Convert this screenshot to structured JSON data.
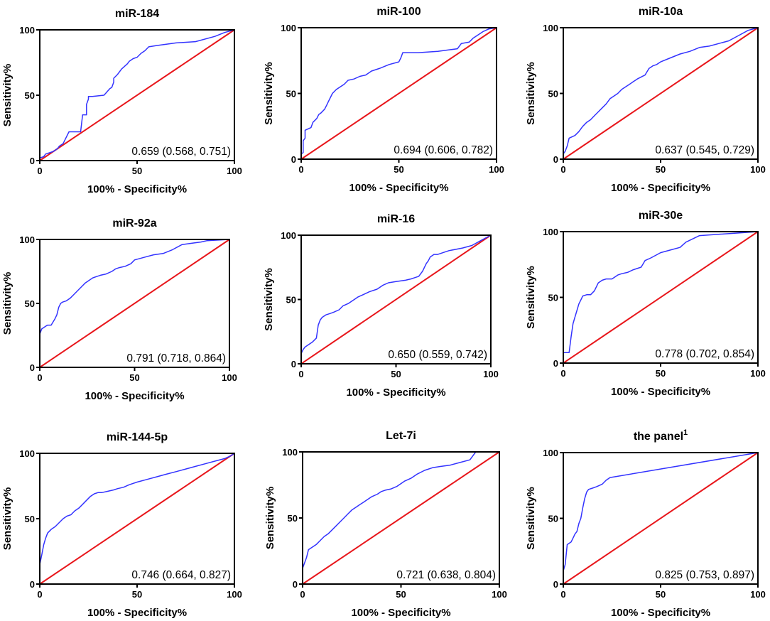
{
  "figure": {
    "title": "",
    "description_hidden": ""
  },
  "colors": {
    "roc": "#3333ff",
    "reference": "#e8161b",
    "axes": "#000000"
  },
  "chart_data": [
    {
      "type": "line",
      "title": "miR-184",
      "title_superscript": "",
      "xlabel": "100% - Specificity%",
      "ylabel": "Sensitivity%",
      "xlim": [
        0,
        100
      ],
      "ylim": [
        0,
        100
      ],
      "xticks": [
        0,
        50,
        100
      ],
      "yticks": [
        0,
        50,
        100
      ],
      "auc_label": "0.659 (0.568, 0.751)",
      "series": [
        {
          "name": "ROC",
          "x": [
            0,
            0,
            2,
            3,
            5,
            7,
            9,
            10,
            12,
            13,
            15,
            21,
            22,
            24,
            24,
            25,
            25,
            27,
            33,
            36,
            37,
            38,
            38,
            40,
            41,
            42,
            45,
            46,
            48,
            50,
            52,
            54,
            56,
            60,
            70,
            80,
            90,
            95,
            100
          ],
          "y": [
            0,
            2,
            3,
            5,
            6,
            7,
            9,
            11,
            13,
            16,
            22,
            22,
            35,
            35,
            43,
            47,
            49,
            49,
            50,
            55,
            56,
            60,
            63,
            66,
            68,
            70,
            74,
            76,
            78,
            79,
            82,
            84,
            87,
            88,
            90,
            91,
            95,
            98,
            100
          ]
        },
        {
          "name": "Reference",
          "x": [
            0,
            100
          ],
          "y": [
            0,
            100
          ]
        }
      ]
    },
    {
      "type": "line",
      "title": "miR-100",
      "title_superscript": "",
      "xlabel": "100% - Specificity%",
      "ylabel": "Sensitivity%",
      "xlim": [
        0,
        100
      ],
      "ylim": [
        0,
        100
      ],
      "xticks": [
        0,
        50,
        100
      ],
      "yticks": [
        0,
        50,
        100
      ],
      "auc_label": "0.694 (0.606, 0.782)",
      "series": [
        {
          "name": "ROC",
          "x": [
            0,
            0,
            1,
            1,
            2,
            2,
            5,
            6,
            8,
            9,
            10,
            12,
            13,
            14,
            16,
            18,
            20,
            22,
            24,
            27,
            30,
            33,
            36,
            40,
            45,
            50,
            51,
            52,
            60,
            70,
            80,
            82,
            86,
            88,
            90,
            93,
            96,
            100
          ],
          "y": [
            0,
            4,
            5,
            14,
            16,
            22,
            24,
            28,
            31,
            34,
            35,
            38,
            41,
            44,
            50,
            53,
            55,
            57,
            60,
            61,
            63,
            64,
            67,
            69,
            72,
            74,
            77,
            81,
            81,
            82,
            84,
            88,
            89,
            92,
            94,
            97,
            99,
            100
          ]
        },
        {
          "name": "Reference",
          "x": [
            0,
            100
          ],
          "y": [
            0,
            100
          ]
        }
      ]
    },
    {
      "type": "line",
      "title": "miR-10a",
      "title_superscript": "",
      "xlabel": "100% - Specificity%",
      "ylabel": "Sensitivity%",
      "xlim": [
        0,
        100
      ],
      "ylim": [
        0,
        100
      ],
      "xticks": [
        0,
        50,
        100
      ],
      "yticks": [
        0,
        50,
        100
      ],
      "auc_label": "0.637 (0.545, 0.729)",
      "series": [
        {
          "name": "ROC",
          "x": [
            0,
            0,
            1,
            2,
            3,
            6,
            8,
            10,
            12,
            14,
            16,
            18,
            20,
            22,
            24,
            26,
            28,
            30,
            32,
            34,
            36,
            38,
            42,
            44,
            46,
            48,
            50,
            55,
            60,
            65,
            70,
            75,
            80,
            85,
            90,
            95,
            100
          ],
          "y": [
            0,
            4,
            6,
            10,
            16,
            18,
            21,
            25,
            28,
            30,
            33,
            36,
            39,
            42,
            46,
            48,
            50,
            53,
            55,
            57,
            59,
            61,
            64,
            69,
            71,
            72,
            74,
            77,
            80,
            82,
            85,
            86,
            88,
            90,
            94,
            98,
            100
          ]
        },
        {
          "name": "Reference",
          "x": [
            0,
            100
          ],
          "y": [
            0,
            100
          ]
        }
      ]
    },
    {
      "type": "line",
      "title": "miR-92a",
      "title_superscript": "",
      "xlabel": "100% - Specificity%",
      "ylabel": "Sensitivity%",
      "xlim": [
        0,
        100
      ],
      "ylim": [
        0,
        100
      ],
      "xticks": [
        0,
        50,
        100
      ],
      "yticks": [
        0,
        50,
        100
      ],
      "auc_label": "0.791 (0.718, 0.864)",
      "series": [
        {
          "name": "ROC",
          "x": [
            0,
            0,
            1,
            3,
            4,
            6,
            8,
            9,
            10,
            11,
            12,
            14,
            16,
            18,
            20,
            22,
            24,
            26,
            28,
            30,
            32,
            35,
            38,
            40,
            42,
            45,
            48,
            50,
            55,
            60,
            65,
            70,
            75,
            80,
            85,
            88,
            100
          ],
          "y": [
            0,
            26,
            30,
            32,
            33,
            33,
            38,
            41,
            47,
            50,
            51,
            52,
            54,
            57,
            60,
            63,
            66,
            68,
            70,
            71,
            72,
            73,
            75,
            77,
            78,
            79,
            81,
            84,
            86,
            88,
            89,
            92,
            96,
            97,
            98,
            99,
            100
          ]
        },
        {
          "name": "Reference",
          "x": [
            0,
            100
          ],
          "y": [
            0,
            100
          ]
        }
      ]
    },
    {
      "type": "line",
      "title": "miR-16",
      "title_superscript": "",
      "xlabel": "100% - Specificity%",
      "ylabel": "Sensitivity%",
      "xlim": [
        0,
        100
      ],
      "ylim": [
        0,
        100
      ],
      "xticks": [
        0,
        50,
        100
      ],
      "yticks": [
        0,
        50,
        100
      ],
      "auc_label": "0.650 (0.559, 0.742)",
      "series": [
        {
          "name": "ROC",
          "x": [
            0,
            0,
            1,
            2,
            4,
            6,
            8,
            9,
            10,
            11,
            13,
            15,
            17,
            20,
            22,
            25,
            28,
            30,
            33,
            36,
            40,
            43,
            46,
            50,
            55,
            58,
            60,
            62,
            63,
            64,
            65,
            66,
            67,
            68,
            70,
            72,
            78,
            85,
            90,
            95,
            100
          ],
          "y": [
            0,
            8,
            11,
            13,
            15,
            17,
            20,
            30,
            34,
            36,
            38,
            39,
            40,
            42,
            45,
            47,
            50,
            52,
            54,
            56,
            58,
            61,
            63,
            64,
            65,
            66,
            67,
            68,
            70,
            72,
            75,
            78,
            80,
            83,
            85,
            85,
            88,
            90,
            92,
            96,
            100
          ]
        },
        {
          "name": "Reference",
          "x": [
            0,
            100
          ],
          "y": [
            0,
            100
          ]
        }
      ]
    },
    {
      "type": "line",
      "title": "miR-30e",
      "title_superscript": "",
      "xlabel": "100% - Specificity%",
      "ylabel": "Sensitivity%",
      "xlim": [
        0,
        100
      ],
      "ylim": [
        0,
        100
      ],
      "xticks": [
        0,
        50,
        100
      ],
      "yticks": [
        0,
        50,
        100
      ],
      "auc_label": "0.778 (0.702, 0.854)",
      "series": [
        {
          "name": "ROC",
          "x": [
            0,
            0,
            1,
            3,
            4,
            5,
            6,
            7,
            8,
            9,
            10,
            12,
            14,
            16,
            18,
            20,
            22,
            25,
            28,
            30,
            33,
            36,
            40,
            42,
            45,
            50,
            55,
            60,
            63,
            70,
            100
          ],
          "y": [
            0,
            8,
            8,
            8,
            20,
            30,
            35,
            40,
            45,
            48,
            51,
            52,
            52,
            55,
            61,
            63,
            64,
            64,
            67,
            68,
            69,
            71,
            73,
            78,
            80,
            84,
            86,
            88,
            92,
            97,
            100
          ]
        },
        {
          "name": "Reference",
          "x": [
            0,
            100
          ],
          "y": [
            0,
            100
          ]
        }
      ]
    },
    {
      "type": "line",
      "title": "miR-144-5p",
      "title_superscript": "",
      "xlabel": "100% - Specificity%",
      "ylabel": "Sensitivity%",
      "xlim": [
        0,
        100
      ],
      "ylim": [
        0,
        100
      ],
      "xticks": [
        0,
        50,
        100
      ],
      "yticks": [
        0,
        50,
        100
      ],
      "auc_label": "0.746 (0.664, 0.827)",
      "series": [
        {
          "name": "ROC",
          "x": [
            0,
            0,
            1,
            2,
            3,
            4,
            6,
            8,
            10,
            12,
            14,
            16,
            18,
            20,
            22,
            24,
            26,
            28,
            30,
            32,
            35,
            38,
            40,
            43,
            46,
            50,
            55,
            60,
            65,
            70,
            75,
            80,
            85,
            90,
            95,
            98,
            100
          ],
          "y": [
            0,
            15,
            22,
            30,
            35,
            39,
            42,
            44,
            47,
            50,
            52,
            53,
            56,
            58,
            61,
            64,
            67,
            69,
            70,
            70,
            71,
            72,
            73,
            74,
            76,
            78,
            80,
            82,
            84,
            86,
            88,
            90,
            92,
            94,
            96,
            98,
            100
          ]
        },
        {
          "name": "Reference",
          "x": [
            0,
            100
          ],
          "y": [
            0,
            100
          ]
        }
      ]
    },
    {
      "type": "line",
      "title": "Let-7i",
      "title_superscript": "",
      "xlabel": "100% - Specificity%",
      "ylabel": "Sensitivity%",
      "xlim": [
        0,
        100
      ],
      "ylim": [
        0,
        100
      ],
      "xticks": [
        0,
        50,
        100
      ],
      "yticks": [
        0,
        50,
        100
      ],
      "auc_label": "0.721 (0.638, 0.804)",
      "series": [
        {
          "name": "ROC",
          "x": [
            0,
            0,
            2,
            3,
            5,
            7,
            9,
            11,
            13,
            15,
            17,
            19,
            21,
            23,
            25,
            27,
            29,
            31,
            33,
            35,
            38,
            40,
            42,
            45,
            48,
            50,
            52,
            55,
            58,
            62,
            66,
            70,
            75,
            80,
            85,
            88,
            100
          ],
          "y": [
            0,
            12,
            20,
            26,
            28,
            30,
            33,
            36,
            38,
            41,
            44,
            47,
            50,
            53,
            56,
            58,
            60,
            62,
            64,
            66,
            68,
            70,
            71,
            72,
            74,
            76,
            78,
            80,
            83,
            86,
            88,
            89,
            90,
            92,
            94,
            100,
            100
          ]
        },
        {
          "name": "Reference",
          "x": [
            0,
            100
          ],
          "y": [
            0,
            100
          ]
        }
      ]
    },
    {
      "type": "line",
      "title": "the panel",
      "title_superscript": "1",
      "xlabel": "100% - Specificity%",
      "ylabel": "Sensitivity%",
      "xlim": [
        0,
        100
      ],
      "ylim": [
        0,
        100
      ],
      "xticks": [
        0,
        50,
        100
      ],
      "yticks": [
        0,
        50,
        100
      ],
      "auc_label": "0.825 (0.753, 0.897)",
      "series": [
        {
          "name": "ROC",
          "x": [
            0,
            0,
            1,
            2,
            4,
            5,
            6,
            7,
            8,
            9,
            10,
            11,
            12,
            13,
            15,
            17,
            20,
            22,
            24,
            100
          ],
          "y": [
            0,
            10,
            15,
            30,
            32,
            35,
            38,
            40,
            46,
            50,
            58,
            65,
            70,
            72,
            73,
            74,
            76,
            79,
            81,
            100
          ]
        },
        {
          "name": "Reference",
          "x": [
            0,
            100
          ],
          "y": [
            0,
            100
          ]
        }
      ]
    }
  ]
}
